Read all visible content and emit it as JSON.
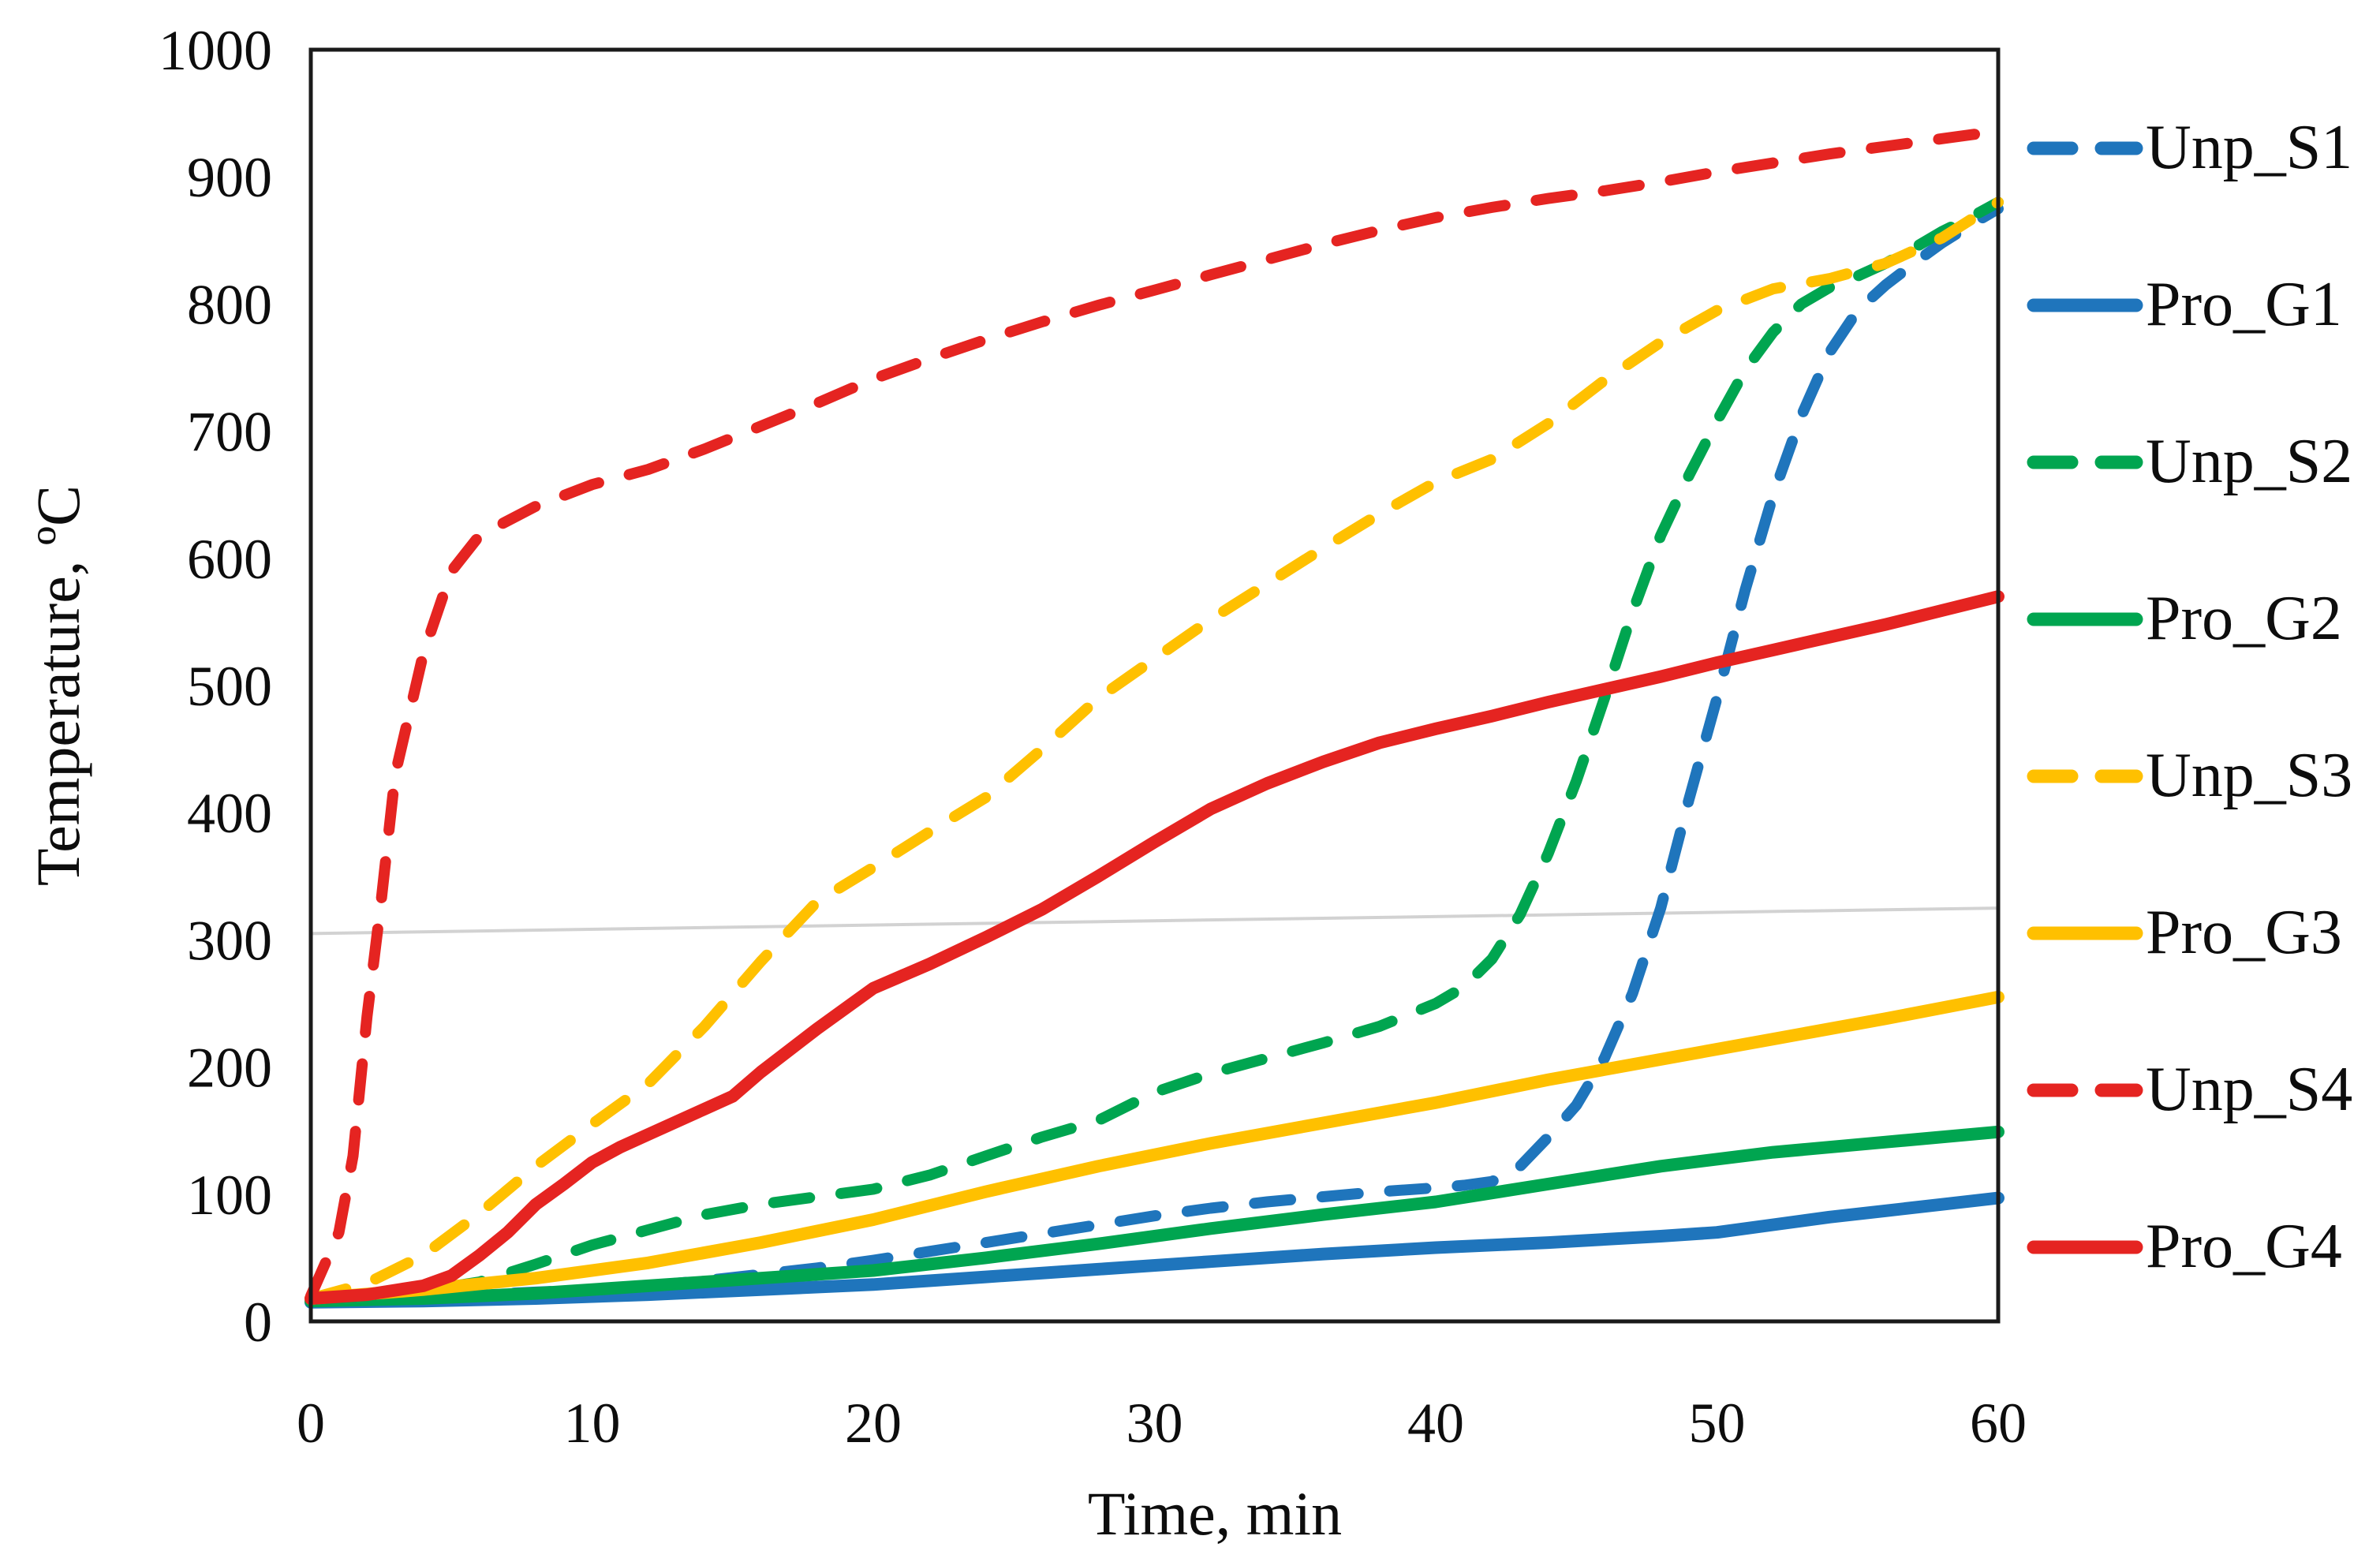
{
  "chart_data": {
    "type": "line",
    "title": "",
    "xlabel": "Time, min",
    "ylabel": "Temperature, ºC",
    "xlim": [
      0,
      60
    ],
    "ylim": [
      0,
      1000
    ],
    "x_ticks": [
      0,
      10,
      20,
      30,
      40,
      50,
      60
    ],
    "y_ticks": [
      0,
      100,
      200,
      300,
      400,
      500,
      600,
      700,
      800,
      900,
      1000
    ],
    "grid": false,
    "legend_position": "right",
    "plot_border": true,
    "reference_line": {
      "comment": "faint light-gray nearly-horizontal line crossing the plot",
      "x": [
        0,
        60
      ],
      "y": [
        305,
        325
      ],
      "color": "#D2D2D2"
    },
    "series": [
      {
        "name": "Unp_S1",
        "color": "#1F75BC",
        "dashed": true,
        "x": [
          0,
          2,
          4,
          6,
          8,
          10,
          12,
          14,
          16,
          18,
          20,
          22,
          24,
          26,
          28,
          30,
          32,
          34,
          36,
          38,
          40,
          41,
          42,
          43,
          44,
          45,
          46,
          47,
          48,
          49,
          50,
          51,
          52,
          53,
          54,
          55,
          56,
          57,
          58,
          59,
          60
        ],
        "y": [
          17,
          18,
          20,
          21,
          23,
          25,
          28,
          32,
          37,
          42,
          48,
          55,
          62,
          69,
          76,
          83,
          89,
          94,
          98,
          102,
          105,
          107,
          110,
          122,
          145,
          170,
          207,
          258,
          325,
          410,
          490,
          575,
          650,
          712,
          762,
          795,
          815,
          832,
          848,
          862,
          875
        ]
      },
      {
        "name": "Pro_G1",
        "color": "#1F75BC",
        "dashed": false,
        "x": [
          0,
          4,
          8,
          12,
          16,
          20,
          24,
          28,
          32,
          36,
          40,
          44,
          48,
          50,
          52,
          54,
          56,
          58,
          60
        ],
        "y": [
          15,
          16,
          18,
          21,
          25,
          29,
          35,
          41,
          47,
          53,
          58,
          62,
          67,
          70,
          76,
          82,
          87,
          92,
          97
        ]
      },
      {
        "name": "Unp_S2",
        "color": "#00A550",
        "dashed": true,
        "x": [
          0,
          2,
          4,
          6,
          8,
          10,
          12,
          14,
          16,
          18,
          20,
          22,
          24,
          26,
          28,
          30,
          32,
          34,
          36,
          38,
          40,
          41,
          42,
          43,
          44,
          45,
          46,
          47,
          48,
          49,
          50,
          51,
          52,
          53,
          54,
          55,
          56,
          57,
          58,
          59,
          60
        ],
        "y": [
          17,
          20,
          24,
          31,
          45,
          60,
          72,
          84,
          92,
          98,
          104,
          115,
          130,
          145,
          158,
          180,
          195,
          207,
          219,
          232,
          250,
          263,
          285,
          320,
          368,
          425,
          490,
          558,
          618,
          665,
          708,
          748,
          778,
          800,
          813,
          822,
          832,
          844,
          857,
          868,
          880
        ]
      },
      {
        "name": "Pro_G2",
        "color": "#00A550",
        "dashed": false,
        "x": [
          0,
          4,
          8,
          12,
          16,
          20,
          24,
          28,
          32,
          36,
          40,
          44,
          48,
          52,
          56,
          60
        ],
        "y": [
          16,
          18,
          22,
          28,
          34,
          40,
          50,
          61,
          73,
          84,
          94,
          108,
          122,
          133,
          141,
          149
        ]
      },
      {
        "name": "Unp_S3",
        "color": "#FFC000",
        "dashed": true,
        "x": [
          0,
          2,
          4,
          6,
          8,
          10,
          12,
          14,
          16,
          18,
          20,
          22,
          24,
          26,
          28,
          30,
          32,
          34,
          36,
          38,
          40,
          42,
          44,
          46,
          48,
          50,
          52,
          54,
          56,
          58,
          60
        ],
        "y": [
          18,
          30,
          52,
          85,
          122,
          155,
          187,
          232,
          283,
          330,
          357,
          385,
          412,
          450,
          490,
          521,
          552,
          580,
          608,
          635,
          660,
          678,
          706,
          740,
          770,
          795,
          812,
          820,
          832,
          852,
          880
        ]
      },
      {
        "name": "Pro_G3",
        "color": "#FFC000",
        "dashed": false,
        "x": [
          0,
          4,
          8,
          12,
          16,
          20,
          24,
          28,
          32,
          36,
          40,
          44,
          48,
          52,
          56,
          60
        ],
        "y": [
          18,
          25,
          34,
          46,
          62,
          80,
          102,
          122,
          140,
          156,
          172,
          190,
          206,
          222,
          238,
          255
        ]
      },
      {
        "name": "Unp_S4",
        "color": "#E52421",
        "dashed": true,
        "x": [
          0,
          1,
          1.5,
          2,
          2.5,
          3,
          4,
          5,
          6,
          8,
          10,
          12,
          14,
          16,
          18,
          20,
          22,
          24,
          26,
          28,
          30,
          32,
          34,
          36,
          38,
          40,
          42,
          44,
          46,
          48,
          50,
          52,
          54,
          56,
          58,
          60
        ],
        "y": [
          20,
          70,
          130,
          240,
          330,
          430,
          525,
          590,
          618,
          641,
          658,
          670,
          686,
          704,
          722,
          741,
          757,
          772,
          786,
          799,
          811,
          823,
          835,
          847,
          858,
          868,
          876,
          883,
          889,
          896,
          904,
          911,
          918,
          924,
          930,
          936
        ]
      },
      {
        "name": "Pro_G4",
        "color": "#E52421",
        "dashed": false,
        "x": [
          0,
          2,
          4,
          5,
          6,
          7,
          8,
          9,
          10,
          11,
          12,
          14,
          15,
          16,
          18,
          20,
          22,
          24,
          26,
          28,
          30,
          32,
          34,
          36,
          38,
          40,
          42,
          44,
          46,
          48,
          50,
          52,
          54,
          56,
          58,
          60
        ],
        "y": [
          18,
          21,
          28,
          36,
          52,
          70,
          92,
          108,
          125,
          137,
          147,
          167,
          177,
          196,
          230,
          262,
          281,
          302,
          324,
          350,
          377,
          403,
          423,
          440,
          455,
          466,
          476,
          487,
          497,
          507,
          518,
          528,
          538,
          548,
          559,
          570
        ]
      }
    ]
  },
  "axes": {
    "x_title": "Time, min",
    "y_title": "Temperature, ºC"
  }
}
